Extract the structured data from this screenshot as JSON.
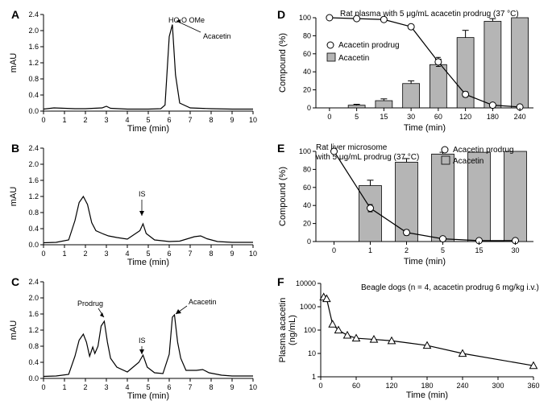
{
  "panels": {
    "A": {
      "label": "A",
      "type": "line",
      "xLabel": "Time (min)",
      "yLabel": "mAU",
      "xlim": [
        0,
        10
      ],
      "xtick_step": 1,
      "ylim": [
        0,
        2.4
      ],
      "yticks": [
        0,
        0.4,
        0.8,
        1.2,
        1.6,
        2.0,
        2.4
      ],
      "annot": "Acacetin",
      "trace": [
        [
          0,
          0.05
        ],
        [
          0.5,
          0.08
        ],
        [
          1,
          0.07
        ],
        [
          1.5,
          0.06
        ],
        [
          2,
          0.06
        ],
        [
          2.8,
          0.08
        ],
        [
          3.0,
          0.12
        ],
        [
          3.2,
          0.07
        ],
        [
          4,
          0.05
        ],
        [
          5,
          0.05
        ],
        [
          5.6,
          0.06
        ],
        [
          5.8,
          0.15
        ],
        [
          6.0,
          1.85
        ],
        [
          6.15,
          2.15
        ],
        [
          6.3,
          0.9
        ],
        [
          6.5,
          0.2
        ],
        [
          7,
          0.08
        ],
        [
          8,
          0.06
        ],
        [
          9,
          0.05
        ],
        [
          10,
          0.05
        ]
      ]
    },
    "B": {
      "label": "B",
      "type": "line",
      "xLabel": "Time (min)",
      "yLabel": "mAU",
      "xlim": [
        0,
        10
      ],
      "xtick_step": 1,
      "ylim": [
        0,
        2.4
      ],
      "yticks": [
        0,
        0.4,
        0.8,
        1.2,
        1.6,
        2.0,
        2.4
      ],
      "annot": "IS",
      "trace": [
        [
          0,
          0.05
        ],
        [
          0.6,
          0.06
        ],
        [
          1.2,
          0.12
        ],
        [
          1.5,
          0.6
        ],
        [
          1.7,
          1.05
        ],
        [
          1.9,
          1.2
        ],
        [
          2.1,
          1.0
        ],
        [
          2.3,
          0.55
        ],
        [
          2.5,
          0.35
        ],
        [
          2.8,
          0.28
        ],
        [
          3.1,
          0.22
        ],
        [
          3.5,
          0.18
        ],
        [
          4.0,
          0.14
        ],
        [
          4.6,
          0.35
        ],
        [
          4.75,
          0.52
        ],
        [
          4.9,
          0.28
        ],
        [
          5.3,
          0.12
        ],
        [
          6.0,
          0.08
        ],
        [
          6.5,
          0.09
        ],
        [
          7.2,
          0.2
        ],
        [
          7.5,
          0.22
        ],
        [
          7.8,
          0.15
        ],
        [
          8.3,
          0.08
        ],
        [
          9,
          0.06
        ],
        [
          10,
          0.06
        ]
      ]
    },
    "C": {
      "label": "C",
      "type": "line",
      "xLabel": "Time (min)",
      "yLabel": "mAU",
      "xlim": [
        0,
        10
      ],
      "xtick_step": 1,
      "ylim": [
        0,
        2.4
      ],
      "yticks": [
        0,
        0.4,
        0.8,
        1.2,
        1.6,
        2.0,
        2.4
      ],
      "annotProdrug": "Prodrug",
      "annotIS": "IS",
      "annotAcacetin": "Acacetin",
      "trace": [
        [
          0,
          0.05
        ],
        [
          0.6,
          0.06
        ],
        [
          1.2,
          0.1
        ],
        [
          1.5,
          0.55
        ],
        [
          1.7,
          0.95
        ],
        [
          1.9,
          1.1
        ],
        [
          2.05,
          0.9
        ],
        [
          2.2,
          0.55
        ],
        [
          2.35,
          0.78
        ],
        [
          2.45,
          0.62
        ],
        [
          2.6,
          0.8
        ],
        [
          2.75,
          1.3
        ],
        [
          2.9,
          1.42
        ],
        [
          3.05,
          0.9
        ],
        [
          3.2,
          0.5
        ],
        [
          3.5,
          0.28
        ],
        [
          4.0,
          0.16
        ],
        [
          4.55,
          0.4
        ],
        [
          4.75,
          0.58
        ],
        [
          4.95,
          0.28
        ],
        [
          5.3,
          0.14
        ],
        [
          5.7,
          0.12
        ],
        [
          6.0,
          0.6
        ],
        [
          6.15,
          1.52
        ],
        [
          6.25,
          1.58
        ],
        [
          6.4,
          0.9
        ],
        [
          6.55,
          0.5
        ],
        [
          6.8,
          0.2
        ],
        [
          7.3,
          0.2
        ],
        [
          7.6,
          0.22
        ],
        [
          7.9,
          0.14
        ],
        [
          8.5,
          0.08
        ],
        [
          9,
          0.06
        ],
        [
          10,
          0.06
        ]
      ]
    },
    "D": {
      "label": "D",
      "type": "mixed",
      "title": "Rat plasma with 5 μg/mL acacetin prodrug (37 °C)",
      "xLabel": "Time (min)",
      "yLabel": "Compound (%)",
      "ylim": [
        0,
        100
      ],
      "ytick_step": 20,
      "categories": [
        "0",
        "5",
        "15",
        "30",
        "60",
        "120",
        "180",
        "240"
      ],
      "legend": {
        "line": "Acacetin prodrug",
        "bar": "Acacetin"
      },
      "bar_values": [
        0,
        3,
        8,
        27,
        48,
        78,
        96,
        100
      ],
      "bar_errors": [
        0,
        1,
        2,
        3,
        6,
        8,
        3,
        0
      ],
      "line_values": [
        100,
        99,
        98,
        90,
        51,
        15,
        3,
        1
      ],
      "line_errors": [
        0,
        0,
        1,
        2,
        5,
        3,
        1,
        0
      ]
    },
    "E": {
      "label": "E",
      "type": "mixed",
      "title": "Rat liver microsome with 5 μg/mL prodrug (37 °C)",
      "xLabel": "Time (min)",
      "yLabel": "Compound (%)",
      "ylim": [
        0,
        100
      ],
      "ytick_step": 20,
      "categories": [
        "0",
        "1",
        "2",
        "5",
        "15",
        "30"
      ],
      "legend": {
        "line": "Acacetin prodrug",
        "bar": "Acacetin"
      },
      "bar_values": [
        0,
        62,
        88,
        97,
        99,
        100
      ],
      "bar_errors": [
        0,
        6,
        4,
        2,
        0,
        0
      ],
      "line_values": [
        100,
        37,
        10,
        3,
        1,
        1
      ],
      "line_errors": [
        0,
        4,
        3,
        1,
        0,
        0
      ]
    },
    "F": {
      "label": "F",
      "type": "semilogy",
      "title": "Beagle dogs (n = 4, acacetin prodrug 6 mg/kg i.v.)",
      "xLabel": "Time (min)",
      "yLabel": "Plasma acacetin (ng/mL)",
      "xlim": [
        0,
        360
      ],
      "xtick_step": 60,
      "ylim_log": [
        1,
        10000
      ],
      "x_points": [
        5,
        10,
        20,
        30,
        45,
        60,
        90,
        120,
        180,
        240,
        360
      ],
      "y_points": [
        2600,
        2200,
        180,
        100,
        60,
        45,
        40,
        35,
        22,
        10,
        3
      ]
    }
  },
  "colors": {
    "bg": "#ffffff",
    "axis": "#000000",
    "trace": "#000000",
    "bar_fill": "#b5b5b5",
    "bar_stroke": "#000000",
    "marker_fill": "#ffffff"
  }
}
